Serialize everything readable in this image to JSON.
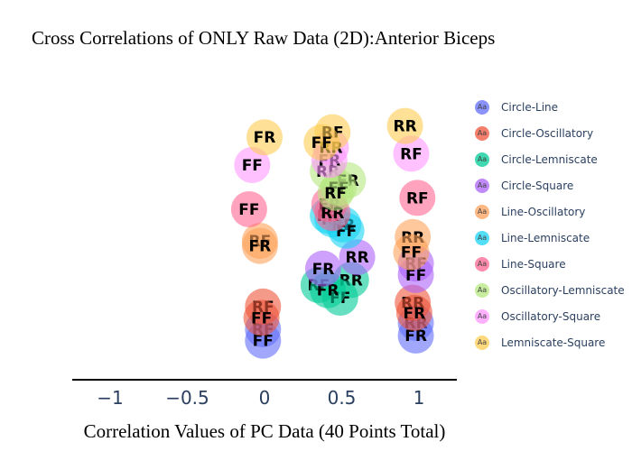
{
  "chart_data": {
    "type": "scatter",
    "title": "Cross Correlations of ONLY Raw Data (2D):Anterior Biceps",
    "xlabel": "Correlation Values of PC Data (40 Points Total)",
    "ylabel": "",
    "xlim": [
      -1.25,
      1.25
    ],
    "ylim": [
      0,
      100
    ],
    "xticks": [
      -1,
      -0.5,
      0,
      0.5,
      1
    ],
    "xtick_labels": [
      "−1",
      "−0.5",
      "0",
      "0.5",
      "1"
    ],
    "grid": false,
    "legend_position": "right",
    "legend_marker_text": "Aa",
    "series": [
      {
        "name": "Circle-Line",
        "color": "#636efa",
        "points": [
          {
            "x": -0.01,
            "y": 12.5,
            "label": "RF"
          },
          {
            "x": -0.01,
            "y": 8.0,
            "label": "FF"
          },
          {
            "x": 0.98,
            "y": 15.0,
            "label": "RR"
          },
          {
            "x": 0.98,
            "y": 10.0,
            "label": "FR"
          }
        ]
      },
      {
        "name": "Circle-Oscillatory",
        "color": "#EF553B",
        "points": [
          {
            "x": -0.01,
            "y": 21.5,
            "label": "RF"
          },
          {
            "x": -0.02,
            "y": 17.0,
            "label": "FF"
          },
          {
            "x": 0.96,
            "y": 23.0,
            "label": "RR"
          },
          {
            "x": 0.97,
            "y": 19.0,
            "label": "FR"
          }
        ]
      },
      {
        "name": "Circle-Lemniscate",
        "color": "#00cc96",
        "points": [
          {
            "x": 0.35,
            "y": 30.0,
            "label": "RF"
          },
          {
            "x": 0.56,
            "y": 32.0,
            "label": "RR"
          },
          {
            "x": 0.49,
            "y": 25.0,
            "label": "FF"
          },
          {
            "x": 0.41,
            "y": 28.0,
            "label": "FR"
          }
        ]
      },
      {
        "name": "Circle-Square",
        "color": "#ab63fa",
        "points": [
          {
            "x": 0.6,
            "y": 41.0,
            "label": "RR"
          },
          {
            "x": 0.38,
            "y": 36.5,
            "label": "FR"
          },
          {
            "x": 0.98,
            "y": 38.5,
            "label": "RF"
          },
          {
            "x": 0.98,
            "y": 34.0,
            "label": "FF"
          }
        ]
      },
      {
        "name": "Line-Oscillatory",
        "color": "#FFA15A",
        "points": [
          {
            "x": -0.03,
            "y": 47.5,
            "label": "RF"
          },
          {
            "x": -0.03,
            "y": 45.5,
            "label": "FR"
          },
          {
            "x": 0.96,
            "y": 49.0,
            "label": "RR"
          },
          {
            "x": 0.95,
            "y": 43.0,
            "label": "FF"
          }
        ]
      },
      {
        "name": "Line-Lemniscate",
        "color": "#19d3f3",
        "points": [
          {
            "x": 0.44,
            "y": 56.0,
            "label": "RF"
          },
          {
            "x": 0.51,
            "y": 54.0,
            "label": "RR"
          },
          {
            "x": 0.53,
            "y": 51.5,
            "label": "FF"
          },
          {
            "x": 0.41,
            "y": 57.5,
            "label": "FR"
          }
        ]
      },
      {
        "name": "Line-Square",
        "color": "#FF6692",
        "points": [
          {
            "x": -0.1,
            "y": 60.0,
            "label": "FF"
          },
          {
            "x": 0.42,
            "y": 62.0,
            "label": "FR"
          },
          {
            "x": 0.44,
            "y": 58.5,
            "label": "RR"
          },
          {
            "x": 0.99,
            "y": 64.5,
            "label": "RF"
          }
        ]
      },
      {
        "name": "Oscillatory-Lemniscate",
        "color": "#B6E880",
        "points": [
          {
            "x": 0.41,
            "y": 75.0,
            "label": "RR"
          },
          {
            "x": 0.54,
            "y": 71.5,
            "label": "FR"
          },
          {
            "x": 0.48,
            "y": 68.5,
            "label": "FF"
          },
          {
            "x": 0.46,
            "y": 66.5,
            "label": "RF"
          }
        ]
      },
      {
        "name": "Oscillatory-Square",
        "color": "#FF97FF",
        "points": [
          {
            "x": -0.08,
            "y": 77.5,
            "label": "FF"
          },
          {
            "x": 0.42,
            "y": 79.5,
            "label": "FR"
          },
          {
            "x": 0.43,
            "y": 84.5,
            "label": "RR"
          },
          {
            "x": 0.95,
            "y": 82.0,
            "label": "RF"
          }
        ]
      },
      {
        "name": "Lemniscate-Square",
        "color": "#FECB52",
        "points": [
          {
            "x": 0.0,
            "y": 88.5,
            "label": "FR"
          },
          {
            "x": 0.44,
            "y": 90.5,
            "label": "RF"
          },
          {
            "x": 0.37,
            "y": 86.5,
            "label": "FF"
          },
          {
            "x": 0.91,
            "y": 93.0,
            "label": "RR"
          }
        ]
      }
    ]
  }
}
